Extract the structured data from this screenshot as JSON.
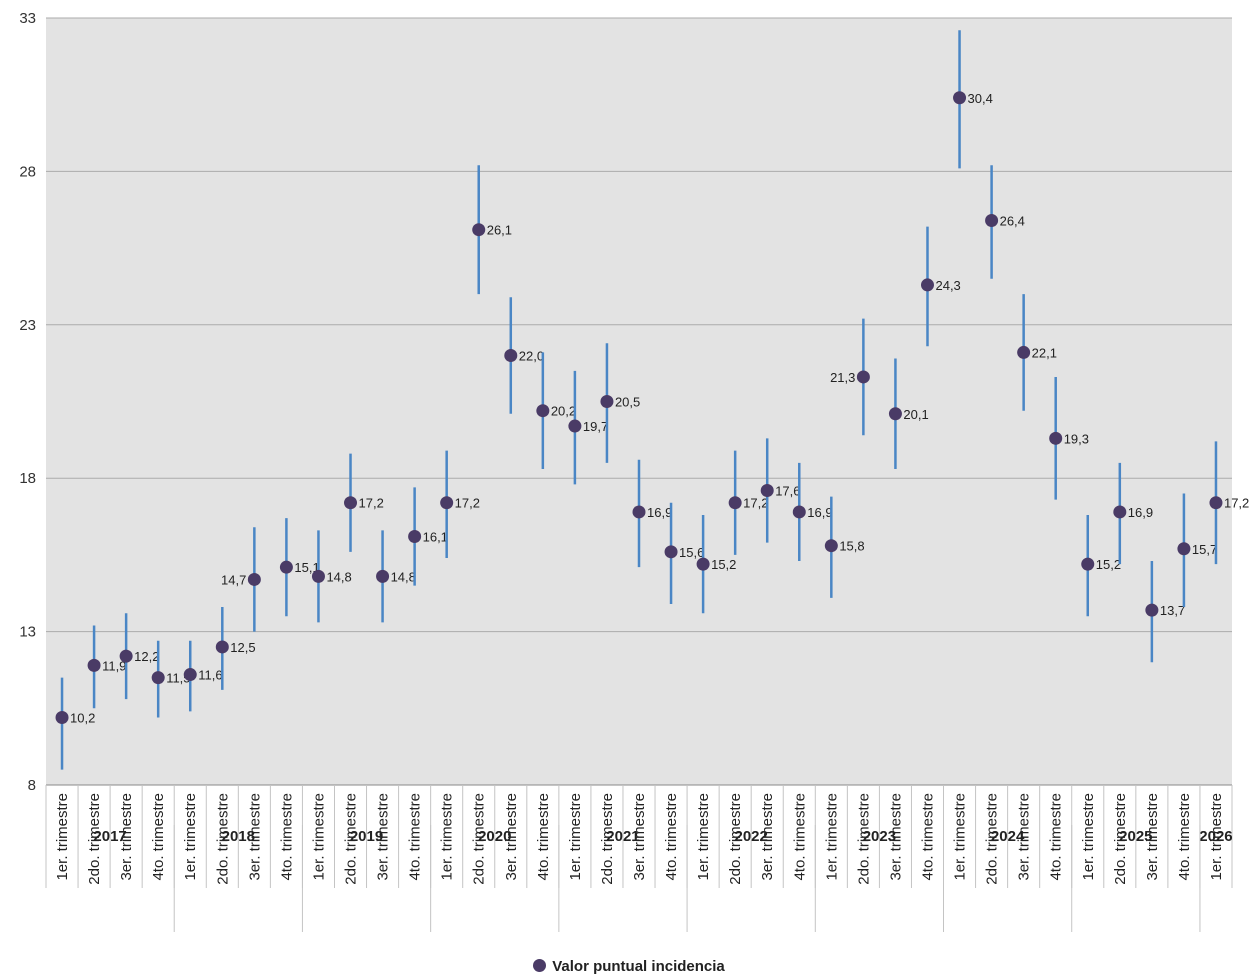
{
  "chart_data": {
    "type": "scatter",
    "ylim": [
      8,
      33
    ],
    "yticks": [
      8,
      13,
      18,
      23,
      28,
      33
    ],
    "grid": true,
    "legend_position": "bottom",
    "colors": {
      "point": "#4a3b66",
      "errorbar": "#4a86c5",
      "plot_bg": "#e3e3e3",
      "grid": "#ababab"
    },
    "series": [
      {
        "name": "Valor puntual incidencia",
        "points": [
          {
            "year": "2017",
            "quarter": "1er. trimestre",
            "value": 10.2,
            "label": "10,2",
            "low": 8.5,
            "high": 11.5
          },
          {
            "year": "2017",
            "quarter": "2do. trimestre",
            "value": 11.9,
            "label": "11,9",
            "low": 10.5,
            "high": 13.2
          },
          {
            "year": "2017",
            "quarter": "3er. trimestre",
            "value": 12.2,
            "label": "12,2",
            "low": 10.8,
            "high": 13.6
          },
          {
            "year": "2017",
            "quarter": "4to. trimestre",
            "value": 11.5,
            "label": "11,5",
            "low": 10.2,
            "high": 12.7
          },
          {
            "year": "2018",
            "quarter": "1er. trimestre",
            "value": 11.6,
            "label": "11,6",
            "low": 10.4,
            "high": 12.7
          },
          {
            "year": "2018",
            "quarter": "2do. trimestre",
            "value": 12.5,
            "label": "12,5",
            "low": 11.1,
            "high": 13.8
          },
          {
            "year": "2018",
            "quarter": "3er. trimestre",
            "value": 14.7,
            "label": "14,7",
            "low": 13.0,
            "high": 16.4
          },
          {
            "year": "2018",
            "quarter": "4to. trimestre",
            "value": 15.1,
            "label": "15,1",
            "low": 13.5,
            "high": 16.7
          },
          {
            "year": "2019",
            "quarter": "1er. trimestre",
            "value": 14.8,
            "label": "14,8",
            "low": 13.3,
            "high": 16.3
          },
          {
            "year": "2019",
            "quarter": "2do. trimestre",
            "value": 17.2,
            "label": "17,2",
            "low": 15.6,
            "high": 18.8
          },
          {
            "year": "2019",
            "quarter": "3er. trimestre",
            "value": 14.8,
            "label": "14,8",
            "low": 13.3,
            "high": 16.3
          },
          {
            "year": "2019",
            "quarter": "4to. trimestre",
            "value": 16.1,
            "label": "16,1",
            "low": 14.5,
            "high": 17.7
          },
          {
            "year": "2020",
            "quarter": "1er. trimestre",
            "value": 17.2,
            "label": "17,2",
            "low": 15.4,
            "high": 18.9
          },
          {
            "year": "2020",
            "quarter": "2do. trimestre",
            "value": 26.1,
            "label": "26,1",
            "low": 24.0,
            "high": 28.2
          },
          {
            "year": "2020",
            "quarter": "3er. trimestre",
            "value": 22.0,
            "label": "22,0",
            "low": 20.1,
            "high": 23.9
          },
          {
            "year": "2020",
            "quarter": "4to. trimestre",
            "value": 20.2,
            "label": "20,2",
            "low": 18.3,
            "high": 22.1
          },
          {
            "year": "2021",
            "quarter": "1er. trimestre",
            "value": 19.7,
            "label": "19,7",
            "low": 17.8,
            "high": 21.5
          },
          {
            "year": "2021",
            "quarter": "2do. trimestre",
            "value": 20.5,
            "label": "20,5",
            "low": 18.5,
            "high": 22.4
          },
          {
            "year": "2021",
            "quarter": "3er. trimestre",
            "value": 16.9,
            "label": "16,9",
            "low": 15.1,
            "high": 18.6
          },
          {
            "year": "2021",
            "quarter": "4to. trimestre",
            "value": 15.6,
            "label": "15,6",
            "low": 13.9,
            "high": 17.2
          },
          {
            "year": "2022",
            "quarter": "1er. trimestre",
            "value": 15.2,
            "label": "15,2",
            "low": 13.6,
            "high": 16.8
          },
          {
            "year": "2022",
            "quarter": "2do. trimestre",
            "value": 17.2,
            "label": "17,2",
            "low": 15.5,
            "high": 18.9
          },
          {
            "year": "2022",
            "quarter": "3er. trimestre",
            "value": 17.6,
            "label": "17,6",
            "low": 15.9,
            "high": 19.3
          },
          {
            "year": "2022",
            "quarter": "4to. trimestre",
            "value": 16.9,
            "label": "16,9",
            "low": 15.3,
            "high": 18.5
          },
          {
            "year": "2023",
            "quarter": "1er. trimestre",
            "value": 15.8,
            "label": "15,8",
            "low": 14.1,
            "high": 17.4
          },
          {
            "year": "2023",
            "quarter": "2do. trimestre",
            "value": 21.3,
            "label": "21,3",
            "low": 19.4,
            "high": 23.2
          },
          {
            "year": "2023",
            "quarter": "3er. trimestre",
            "value": 20.1,
            "label": "20,1",
            "low": 18.3,
            "high": 21.9
          },
          {
            "year": "2023",
            "quarter": "4to. trimestre",
            "value": 24.3,
            "label": "24,3",
            "low": 22.3,
            "high": 26.2
          },
          {
            "year": "2024",
            "quarter": "1er. trimestre",
            "value": 30.4,
            "label": "30,4",
            "low": 28.1,
            "high": 32.6
          },
          {
            "year": "2024",
            "quarter": "2do. trimestre",
            "value": 26.4,
            "label": "26,4",
            "low": 24.5,
            "high": 28.2
          },
          {
            "year": "2024",
            "quarter": "3er. trimestre",
            "value": 22.1,
            "label": "22,1",
            "low": 20.2,
            "high": 24.0
          },
          {
            "year": "2024",
            "quarter": "4to. trimestre",
            "value": 19.3,
            "label": "19,3",
            "low": 17.3,
            "high": 21.3
          },
          {
            "year": "2025",
            "quarter": "1er. trimestre",
            "value": 15.2,
            "label": "15,2",
            "low": 13.5,
            "high": 16.8
          },
          {
            "year": "2025",
            "quarter": "2do. trimestre",
            "value": 16.9,
            "label": "16,9",
            "low": 15.2,
            "high": 18.5
          },
          {
            "year": "2025",
            "quarter": "3er. trimestre",
            "value": 13.7,
            "label": "13,7",
            "low": 12.0,
            "high": 15.3
          },
          {
            "year": "2025",
            "quarter": "4to. trimestre",
            "value": 15.7,
            "label": "15,7",
            "low": 13.8,
            "high": 17.5
          },
          {
            "year": "2026",
            "quarter": "1er. trimestre",
            "value": 17.2,
            "label": "17,2",
            "low": 15.2,
            "high": 19.2
          }
        ]
      }
    ]
  }
}
